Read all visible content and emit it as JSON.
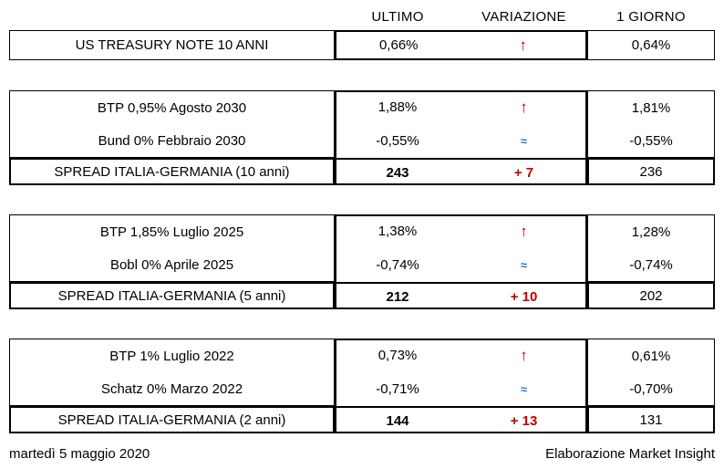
{
  "colors": {
    "up_red": "#C00000",
    "flat_blue": "#2E75B6",
    "border": "#000000",
    "background": "#ffffff"
  },
  "columns": {
    "ultimo": "ULTIMO",
    "variazione": "VARIAZIONE",
    "giorno": "1 GIORNO"
  },
  "sections": [
    {
      "rows": [
        {
          "label": "US TREASURY NOTE 10 ANNI",
          "ultimo": "0,66%",
          "variazione": {
            "symbol": "↑",
            "type": "up"
          },
          "giorno": "0,64%"
        }
      ]
    },
    {
      "bonds": [
        {
          "label": "BTP 0,95% Agosto 2030",
          "ultimo": "1,88%",
          "variazione": {
            "symbol": "↑",
            "type": "up"
          },
          "giorno": "1,81%"
        },
        {
          "label": "Bund 0% Febbraio 2030",
          "ultimo": "-0,55%",
          "variazione": {
            "symbol": "≈",
            "type": "flat"
          },
          "giorno": "-0,55%"
        }
      ],
      "spread": {
        "label": "SPREAD ITALIA-GERMANIA (10 anni)",
        "ultimo": "243",
        "variazione": {
          "symbol": "+ 7",
          "type": "up"
        },
        "giorno": "236"
      }
    },
    {
      "bonds": [
        {
          "label": "BTP 1,85% Luglio 2025",
          "ultimo": "1,38%",
          "variazione": {
            "symbol": "↑",
            "type": "up"
          },
          "giorno": "1,28%"
        },
        {
          "label": "Bobl 0% Aprile 2025",
          "ultimo": "-0,74%",
          "variazione": {
            "symbol": "≈",
            "type": "flat"
          },
          "giorno": "-0,74%"
        }
      ],
      "spread": {
        "label": "SPREAD ITALIA-GERMANIA (5 anni)",
        "ultimo": "212",
        "variazione": {
          "symbol": "+ 10",
          "type": "up"
        },
        "giorno": "202"
      }
    },
    {
      "bonds": [
        {
          "label": "BTP 1% Luglio 2022",
          "ultimo": "0,73%",
          "variazione": {
            "symbol": "↑",
            "type": "up"
          },
          "giorno": "0,61%"
        },
        {
          "label": "Schatz 0% Marzo 2022",
          "ultimo": "-0,71%",
          "variazione": {
            "symbol": "≈",
            "type": "flat"
          },
          "giorno": "-0,70%"
        }
      ],
      "spread": {
        "label": "SPREAD ITALIA-GERMANIA (2 anni)",
        "ultimo": "144",
        "variazione": {
          "symbol": "+ 13",
          "type": "up"
        },
        "giorno": "131"
      }
    }
  ],
  "footer": {
    "date": "martedì 5 maggio 2020",
    "credit": "Elaborazione Market Insight"
  }
}
